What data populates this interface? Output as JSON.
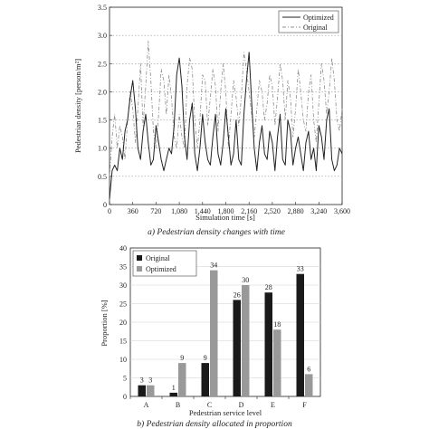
{
  "chart_data": [
    {
      "type": "line",
      "caption": "a) Pedestrian density changes with time",
      "xlabel": "Simulation time [s]",
      "ylabel": "Pedestrian density [person/m²]",
      "xlim": [
        0,
        3600
      ],
      "ylim": [
        0,
        3.5
      ],
      "xticks": [
        "0",
        "360",
        "720",
        "1,080",
        "1,440",
        "1,800",
        "2,160",
        "2,520",
        "2,880",
        "3,240",
        "3,600"
      ],
      "yticks": [
        "0",
        "0.5",
        "1.0",
        "1.5",
        "2.0",
        "2.5",
        "3.0",
        "3.5"
      ],
      "grid": "horizontal dotted",
      "legend_position": "top-right",
      "series": [
        {
          "name": "Optimized",
          "style": "solid",
          "color": "#222222",
          "x": [
            0,
            40,
            80,
            120,
            160,
            200,
            240,
            280,
            320,
            360,
            400,
            440,
            480,
            520,
            560,
            600,
            640,
            680,
            720,
            760,
            800,
            840,
            880,
            920,
            960,
            1000,
            1040,
            1080,
            1120,
            1160,
            1200,
            1240,
            1280,
            1320,
            1360,
            1400,
            1440,
            1480,
            1520,
            1560,
            1600,
            1640,
            1680,
            1720,
            1760,
            1800,
            1840,
            1880,
            1920,
            1960,
            2000,
            2040,
            2080,
            2120,
            2160,
            2200,
            2240,
            2280,
            2320,
            2360,
            2400,
            2440,
            2480,
            2520,
            2560,
            2600,
            2640,
            2680,
            2720,
            2760,
            2800,
            2840,
            2880,
            2920,
            2960,
            3000,
            3040,
            3080,
            3120,
            3160,
            3200,
            3240,
            3280,
            3320,
            3360,
            3400,
            3440,
            3480,
            3520,
            3560,
            3600
          ],
          "y": [
            0.1,
            0.6,
            0.7,
            0.6,
            1.0,
            0.8,
            1.3,
            1.5,
            1.9,
            2.2,
            1.7,
            1.0,
            0.8,
            1.3,
            1.6,
            1.1,
            0.7,
            0.8,
            1.4,
            1.1,
            0.8,
            0.6,
            0.8,
            1.0,
            0.9,
            1.4,
            2.3,
            2.6,
            2.1,
            1.2,
            0.8,
            1.5,
            1.8,
            0.9,
            0.6,
            1.0,
            1.6,
            1.1,
            0.8,
            0.7,
            1.2,
            1.6,
            0.9,
            0.7,
            1.1,
            1.7,
            1.2,
            0.7,
            0.9,
            1.5,
            0.8,
            0.7,
            1.6,
            2.2,
            2.7,
            1.8,
            1.0,
            0.6,
            1.1,
            1.4,
            0.9,
            0.8,
            1.3,
            1.1,
            0.6,
            1.2,
            1.6,
            0.8,
            0.7,
            1.5,
            1.3,
            0.7,
            1.0,
            1.2,
            0.9,
            0.6,
            1.1,
            1.3,
            0.8,
            1.0,
            0.6,
            1.4,
            1.2,
            0.8,
            1.5,
            1.7,
            0.8,
            0.6,
            0.7,
            1.0,
            0.9
          ]
        },
        {
          "name": "Original",
          "style": "dash-dot",
          "color": "#8c8c8c",
          "x": [
            0,
            40,
            80,
            120,
            160,
            200,
            240,
            280,
            320,
            360,
            400,
            440,
            480,
            520,
            560,
            600,
            640,
            680,
            720,
            760,
            800,
            840,
            880,
            920,
            960,
            1000,
            1040,
            1080,
            1120,
            1160,
            1200,
            1240,
            1280,
            1320,
            1360,
            1400,
            1440,
            1480,
            1520,
            1560,
            1600,
            1640,
            1680,
            1720,
            1760,
            1800,
            1840,
            1880,
            1920,
            1960,
            2000,
            2040,
            2080,
            2120,
            2160,
            2200,
            2240,
            2280,
            2320,
            2360,
            2400,
            2440,
            2480,
            2520,
            2560,
            2600,
            2640,
            2680,
            2720,
            2760,
            2800,
            2840,
            2880,
            2920,
            2960,
            3000,
            3040,
            3080,
            3120,
            3160,
            3200,
            3240,
            3280,
            3320,
            3360,
            3400,
            3440,
            3480,
            3520,
            3560,
            3600
          ],
          "y": [
            0.5,
            1.2,
            1.6,
            1.0,
            1.4,
            1.2,
            0.8,
            1.5,
            2.0,
            1.7,
            1.1,
            1.7,
            2.5,
            1.4,
            2.1,
            2.9,
            2.2,
            1.3,
            1.0,
            1.6,
            2.4,
            2.2,
            1.6,
            2.3,
            1.9,
            1.2,
            1.0,
            1.6,
            1.2,
            1.0,
            2.1,
            2.6,
            2.4,
            1.5,
            1.0,
            1.5,
            2.3,
            2.2,
            1.4,
            1.9,
            2.4,
            2.1,
            1.3,
            2.0,
            2.5,
            2.0,
            1.0,
            1.6,
            2.2,
            1.9,
            1.4,
            1.9,
            2.7,
            2.4,
            2.0,
            1.6,
            1.2,
            1.7,
            2.2,
            2.0,
            1.5,
            1.8,
            2.3,
            2.1,
            1.4,
            1.9,
            2.5,
            2.2,
            1.5,
            2.2,
            1.9,
            1.2,
            1.7,
            2.4,
            2.0,
            1.5,
            1.3,
            2.0,
            2.3,
            1.5,
            1.1,
            1.8,
            2.5,
            2.2,
            1.6,
            2.0,
            2.6,
            2.2,
            1.5,
            1.3,
            1.7
          ]
        }
      ]
    },
    {
      "type": "bar",
      "caption": "b) Pedestrian density allocated in proportion",
      "xlabel": "Pedestrian service level",
      "ylabel": "Proportion [%]",
      "categories": [
        "A",
        "B",
        "C",
        "D",
        "E",
        "F"
      ],
      "ylim": [
        0,
        40
      ],
      "yticks": [
        "0",
        "5",
        "10",
        "15",
        "20",
        "25",
        "30",
        "35",
        "40"
      ],
      "grid": "horizontal",
      "legend_position": "top-left",
      "series": [
        {
          "name": "Original",
          "color": "#1a1a1a",
          "values": [
            3,
            1,
            9,
            26,
            28,
            33
          ]
        },
        {
          "name": "Optimized",
          "color": "#999999",
          "values": [
            3,
            9,
            34,
            30,
            18,
            6
          ]
        }
      ]
    }
  ]
}
